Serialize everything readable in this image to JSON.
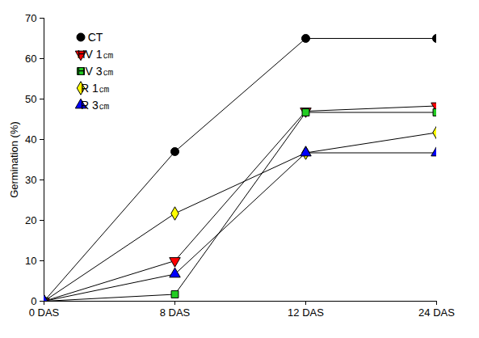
{
  "chart_data": {
    "type": "line",
    "y_label": "Germination (%)",
    "categories": [
      "0 DAS",
      "8 DAS",
      "12 DAS",
      "24 DAS"
    ],
    "ylim": [
      0,
      70
    ],
    "yticks": [
      0,
      10,
      20,
      30,
      40,
      50,
      60,
      70
    ],
    "legend": "upper left",
    "series": [
      {
        "name": "CT",
        "color": "#000000",
        "marker": "circle",
        "values": [
          0,
          37,
          65,
          65
        ]
      },
      {
        "name": "HV 1㎝",
        "color": "#ff0000",
        "marker": "triangle-down",
        "values": [
          0,
          10,
          47,
          48.3
        ]
      },
      {
        "name": "HV 3㎝",
        "color": "#22cc22",
        "marker": "square",
        "values": [
          0,
          1.7,
          46.7,
          46.7
        ]
      },
      {
        "name": "R 1㎝",
        "color": "#ffff00",
        "marker": "diamond",
        "values": [
          0,
          21.7,
          36.7,
          41.7
        ]
      },
      {
        "name": "R 3㎝",
        "color": "#0000ff",
        "marker": "triangle",
        "values": [
          0,
          6.7,
          36.7,
          36.7
        ]
      }
    ]
  }
}
